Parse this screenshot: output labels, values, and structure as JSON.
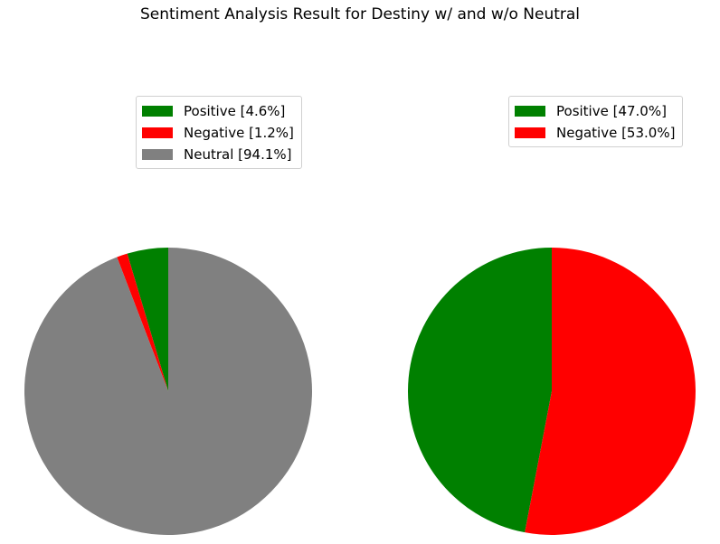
{
  "chart_data": [
    {
      "type": "pie",
      "title": "",
      "startangle": 90,
      "labels": [
        "Positive [4.6%]",
        "Negative [1.2%]",
        "Neutral [94.1%]"
      ],
      "values": [
        4.6,
        1.2,
        94.1
      ],
      "colors": [
        "#008000",
        "#ff0000",
        "#808080"
      ],
      "legend_position": "upper-center"
    },
    {
      "type": "pie",
      "title": "",
      "startangle": 90,
      "labels": [
        "Positive [47.0%]",
        "Negative [53.0%]"
      ],
      "values": [
        47.0,
        53.0
      ],
      "colors": [
        "#008000",
        "#ff0000"
      ],
      "legend_position": "upper-center"
    }
  ],
  "figure": {
    "title": "Sentiment Analysis Result for Destiny w/ and w/o Neutral"
  }
}
